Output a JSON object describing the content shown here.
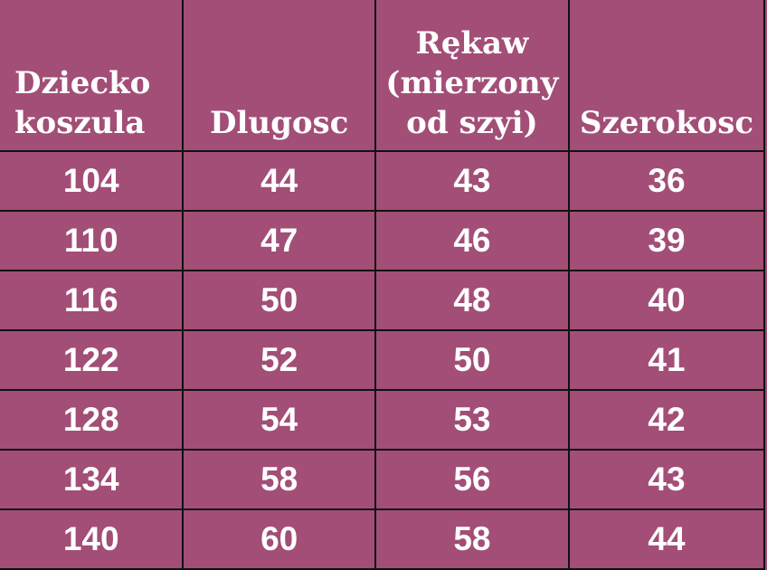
{
  "colors": {
    "background": "#a24e77",
    "text": "#ffffff",
    "border": "#111111"
  },
  "headers": [
    [
      "Dziecko",
      "koszula"
    ],
    [
      "Dlugosc"
    ],
    [
      "Rękaw",
      "(mierzony",
      "od szyi)"
    ],
    [
      "Szerokosc"
    ]
  ],
  "rows": [
    [
      "104",
      "44",
      "43",
      "36"
    ],
    [
      "110",
      "47",
      "46",
      "39"
    ],
    [
      "116",
      "50",
      "48",
      "40"
    ],
    [
      "122",
      "52",
      "50",
      "41"
    ],
    [
      "128",
      "54",
      "53",
      "42"
    ],
    [
      "134",
      "58",
      "56",
      "43"
    ],
    [
      "140",
      "60",
      "58",
      "44"
    ]
  ]
}
